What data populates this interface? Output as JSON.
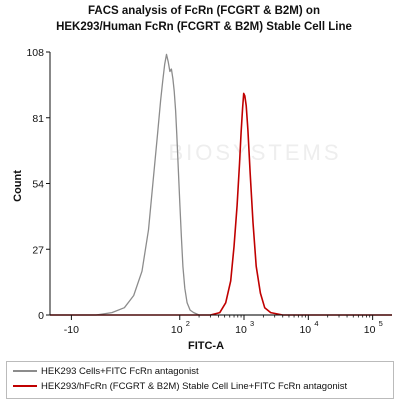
{
  "chart_data": {
    "type": "line",
    "title": "FACS analysis of FcRn (FCGRT & B2M) on",
    "subtitle": "HEK293/Human FcRn (FCGRT & B2M) Stable Cell Line",
    "xlabel": "FITC-A",
    "ylabel": "Count",
    "ylim": [
      0,
      108
    ],
    "yticks": [
      {
        "value": 0,
        "label": "0"
      },
      {
        "value": 27,
        "label": "27"
      },
      {
        "value": 54,
        "label": "54"
      },
      {
        "value": 81,
        "label": "81"
      },
      {
        "value": 108,
        "label": "108"
      }
    ],
    "xscale": "log",
    "xlim": [
      -25,
      200000
    ],
    "xticks": [
      {
        "value": -10,
        "label": "-10",
        "exp": ""
      },
      {
        "value": 100,
        "label": "10",
        "exp": "2"
      },
      {
        "value": 1000,
        "label": "10",
        "exp": "3"
      },
      {
        "value": 10000,
        "label": "10",
        "exp": "4"
      },
      {
        "value": 100000,
        "label": "10",
        "exp": "5"
      }
    ],
    "grid": false,
    "legend_position": "bottom",
    "series": [
      {
        "name": "HEK293 Cells+FITC FcRn antagonist",
        "color": "#8c8c8c",
        "x": [
          -25,
          -10,
          0,
          6,
          12,
          18,
          25,
          32,
          38,
          45,
          50,
          54,
          58,
          62,
          66,
          70,
          74,
          78,
          82,
          86,
          90,
          95,
          100,
          106,
          112,
          120,
          130,
          145,
          165,
          200,
          300,
          1000,
          200000
        ],
        "y": [
          0,
          0,
          0,
          1,
          3,
          8,
          18,
          35,
          55,
          75,
          88,
          96,
          103,
          107,
          104,
          100,
          101,
          97,
          92,
          84,
          74,
          60,
          46,
          32,
          20,
          11,
          5,
          2,
          1,
          0,
          0,
          0,
          0
        ]
      },
      {
        "name": "HEK293/hFcRn (FCGRT & B2M) Stable Cell Line+FITC FcRn antagonist",
        "color": "#c00000",
        "x": [
          -25,
          100,
          300,
          420,
          520,
          620,
          700,
          780,
          850,
          900,
          950,
          990,
          1030,
          1080,
          1150,
          1250,
          1380,
          1550,
          1800,
          2100,
          2600,
          4000,
          200000
        ],
        "y": [
          0,
          0,
          0,
          1,
          5,
          14,
          28,
          45,
          62,
          75,
          85,
          91,
          90,
          86,
          76,
          58,
          38,
          20,
          9,
          3,
          1,
          0,
          0
        ]
      }
    ],
    "watermark": "BIOSYSTEMS"
  }
}
